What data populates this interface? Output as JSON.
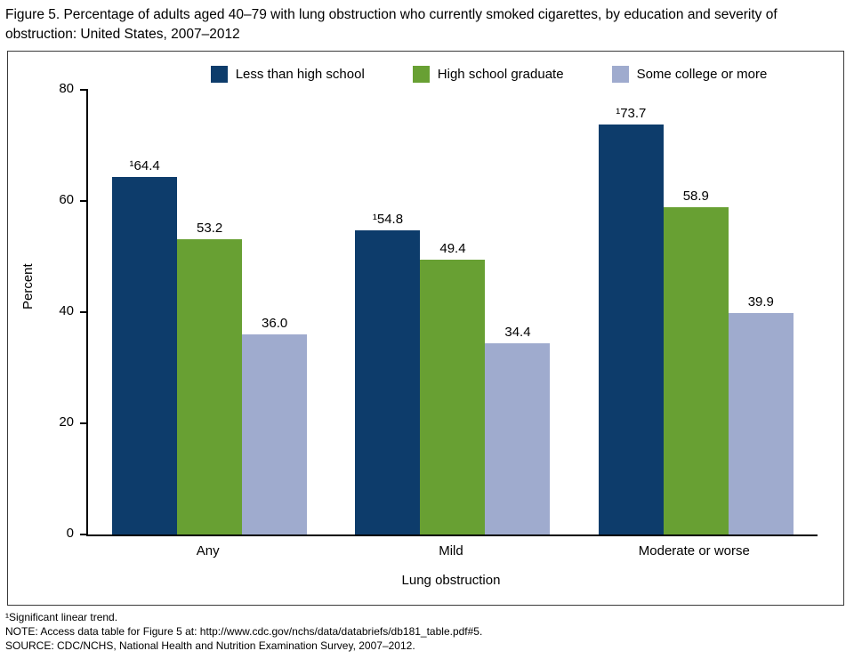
{
  "title": "Figure 5. Percentage of adults aged 40–79 with lung obstruction who currently smoked cigarettes, by education and severity of obstruction: United States, 2007–2012",
  "chart_data": {
    "type": "bar",
    "title": "Percentage of adults aged 40–79 with lung obstruction who currently smoked cigarettes, by education and severity of obstruction: United States, 2007–2012",
    "categories": [
      "Any",
      "Mild",
      "Moderate or worse"
    ],
    "series": [
      {
        "name": "Less than high school",
        "color": "#0d3c6b",
        "values": [
          64.4,
          54.8,
          73.7
        ],
        "labels": [
          "¹64.4",
          "¹54.8",
          "¹73.7"
        ]
      },
      {
        "name": "High school graduate",
        "color": "#68a033",
        "values": [
          53.2,
          49.4,
          58.9
        ],
        "labels": [
          "53.2",
          "49.4",
          "58.9"
        ]
      },
      {
        "name": "Some college or more",
        "color": "#9fabce",
        "values": [
          36.0,
          34.4,
          39.9
        ],
        "labels": [
          "36.0",
          "34.4",
          "39.9"
        ]
      }
    ],
    "xlabel": "Lung obstruction",
    "ylabel": "Percent",
    "ylim": [
      0,
      80
    ],
    "yticks": [
      0,
      20,
      40,
      60,
      80
    ],
    "legend_position": "top",
    "grid": false
  },
  "footnotes": [
    "¹Significant linear trend.",
    "NOTE: Access data table for Figure 5 at: http://www.cdc.gov/nchs/data/databriefs/db181_table.pdf#5.",
    "SOURCE: CDC/NCHS, National Health and Nutrition Examination Survey, 2007–2012."
  ]
}
